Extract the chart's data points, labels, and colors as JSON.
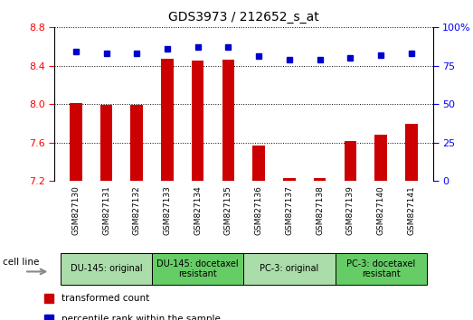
{
  "title": "GDS3973 / 212652_s_at",
  "samples": [
    "GSM827130",
    "GSM827131",
    "GSM827132",
    "GSM827133",
    "GSM827134",
    "GSM827135",
    "GSM827136",
    "GSM827137",
    "GSM827138",
    "GSM827139",
    "GSM827140",
    "GSM827141"
  ],
  "bar_values": [
    8.01,
    7.99,
    7.99,
    8.47,
    8.45,
    8.46,
    7.57,
    7.23,
    7.23,
    7.61,
    7.68,
    7.79
  ],
  "percentile_values": [
    84,
    83,
    83,
    86,
    87,
    87,
    81,
    79,
    79,
    80,
    82,
    83
  ],
  "ylim_left": [
    7.2,
    8.8
  ],
  "ylim_right": [
    0,
    100
  ],
  "yticks_left": [
    7.2,
    7.6,
    8.0,
    8.4,
    8.8
  ],
  "yticks_right": [
    0,
    25,
    50,
    75,
    100
  ],
  "bar_color": "#cc0000",
  "dot_color": "#0000cc",
  "bar_width": 0.4,
  "groups": [
    {
      "label": "DU-145: original",
      "start": 0,
      "end": 3,
      "color": "#aaddaa"
    },
    {
      "label": "DU-145: docetaxel\nresistant",
      "start": 3,
      "end": 6,
      "color": "#66cc66"
    },
    {
      "label": "PC-3: original",
      "start": 6,
      "end": 9,
      "color": "#aaddaa"
    },
    {
      "label": "PC-3: docetaxel\nresistant",
      "start": 9,
      "end": 12,
      "color": "#66cc66"
    }
  ],
  "cell_line_label": "cell line",
  "legend_bar_label": "transformed count",
  "legend_dot_label": "percentile rank within the sample",
  "tick_bg_color": "#cccccc",
  "plot_bg_color": "#ffffff"
}
